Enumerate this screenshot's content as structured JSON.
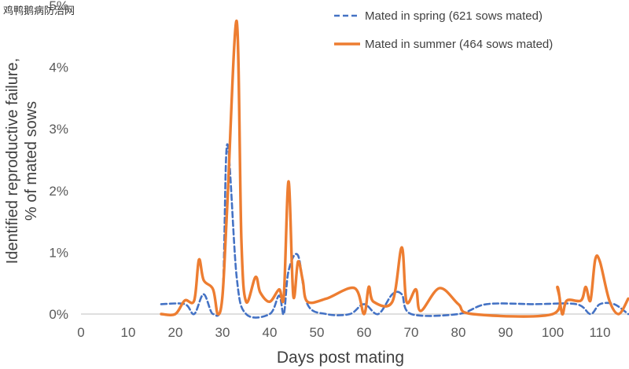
{
  "watermark": "鸡鸭鹅病防治网",
  "chart_data": {
    "type": "line",
    "xlabel": "Days post mating",
    "ylabel": [
      "Identified reproductive failure,",
      "% of mated sows"
    ],
    "xlim": [
      0,
      116
    ],
    "ylim": [
      0,
      5
    ],
    "x_ticks": [
      0,
      10,
      20,
      30,
      40,
      50,
      60,
      70,
      80,
      90,
      100,
      110
    ],
    "y_ticks": [
      0,
      1,
      2,
      3,
      4,
      5
    ],
    "y_tick_format": "percent",
    "legend_position": "top-right",
    "grid": false,
    "series": [
      {
        "name": "Mated in spring (621 sows mated)",
        "color": "#4472c4",
        "dash": "dashed",
        "points": [
          [
            17,
            0.16
          ],
          [
            22,
            0.16
          ],
          [
            24,
            0
          ],
          [
            26,
            0.32
          ],
          [
            28,
            0
          ],
          [
            30,
            0.3
          ],
          [
            31,
            2.75
          ],
          [
            33,
            0.6
          ],
          [
            35,
            0
          ],
          [
            40,
            0
          ],
          [
            42,
            0.3
          ],
          [
            43,
            0
          ],
          [
            44,
            0.7
          ],
          [
            46,
            0.95
          ],
          [
            48,
            0.16
          ],
          [
            52,
            0
          ],
          [
            57,
            0
          ],
          [
            60,
            0.16
          ],
          [
            63,
            0
          ],
          [
            66,
            0.32
          ],
          [
            68,
            0.32
          ],
          [
            70,
            0
          ],
          [
            80,
            0
          ],
          [
            86,
            0.16
          ],
          [
            96,
            0.16
          ],
          [
            105,
            0.16
          ],
          [
            108,
            0
          ],
          [
            110,
            0.16
          ],
          [
            113,
            0.16
          ],
          [
            116,
            0
          ]
        ]
      },
      {
        "name": "Mated in summer (464 sows mated)",
        "color": "#ed7d31",
        "dash": "solid",
        "points": [
          [
            17,
            0
          ],
          [
            20,
            0
          ],
          [
            22,
            0.22
          ],
          [
            24,
            0.22
          ],
          [
            25,
            0.88
          ],
          [
            26,
            0.55
          ],
          [
            28,
            0.4
          ],
          [
            29,
            0
          ],
          [
            30,
            0.3
          ],
          [
            31,
            1.75
          ],
          [
            33,
            4.75
          ],
          [
            34,
            1.2
          ],
          [
            35,
            0.2
          ],
          [
            37,
            0.6
          ],
          [
            38,
            0.35
          ],
          [
            40,
            0.2
          ],
          [
            42,
            0.4
          ],
          [
            43,
            0.3
          ],
          [
            44,
            2.15
          ],
          [
            45,
            0.3
          ],
          [
            46,
            0.85
          ],
          [
            47,
            0.55
          ],
          [
            48,
            0.2
          ],
          [
            52,
            0.25
          ],
          [
            58,
            0.42
          ],
          [
            60,
            0
          ],
          [
            61,
            0.44
          ],
          [
            62,
            0.2
          ],
          [
            66,
            0.2
          ],
          [
            68,
            1.08
          ],
          [
            69,
            0.2
          ],
          [
            71,
            0.4
          ],
          [
            72,
            0.05
          ],
          [
            76,
            0.42
          ],
          [
            80,
            0.16
          ],
          [
            83,
            0
          ],
          [
            100,
            0
          ],
          [
            101,
            0.44
          ],
          [
            102,
            0
          ],
          [
            103,
            0.22
          ],
          [
            106,
            0.22
          ],
          [
            107,
            0.44
          ],
          [
            108,
            0.22
          ],
          [
            109,
            0.88
          ],
          [
            110,
            0.85
          ],
          [
            112,
            0.22
          ],
          [
            114,
            0
          ],
          [
            116,
            0.25
          ]
        ]
      }
    ]
  }
}
